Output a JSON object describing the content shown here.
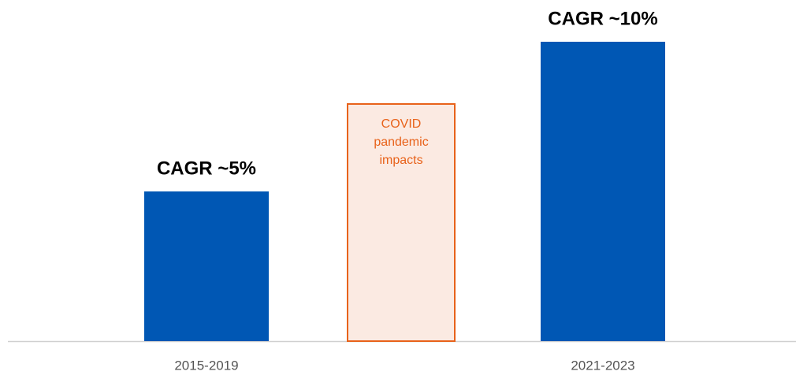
{
  "chart_data": {
    "type": "bar",
    "categories": [
      "2015-2019",
      null,
      "2021-2023"
    ],
    "values": [
      5,
      null,
      10
    ],
    "value_labels": [
      "CAGR ~5%",
      null,
      "CAGR ~10%"
    ],
    "color": "#0057b4",
    "annotation": "COVID pandemic impacts"
  }
}
